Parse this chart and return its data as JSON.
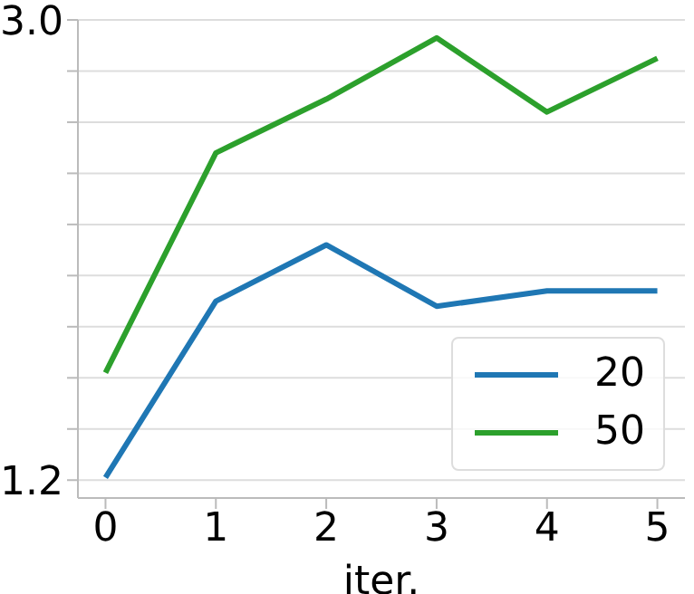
{
  "chart_data": {
    "type": "line",
    "xlabel": "iter.",
    "x": [
      0,
      1,
      2,
      3,
      4,
      5
    ],
    "xlim": [
      -0.25,
      5.25
    ],
    "xticks": [
      0,
      1,
      2,
      3,
      4,
      5
    ],
    "ylim": [
      1.13,
      3.0
    ],
    "yticks": [
      1.2,
      {
        "value": 1.4,
        "label": null
      },
      {
        "value": 1.6,
        "label": null
      },
      {
        "value": 1.8,
        "label": null
      },
      {
        "value": 2.0,
        "label": null
      },
      {
        "value": 2.2,
        "label": null
      },
      {
        "value": 2.4,
        "label": null
      },
      {
        "value": 2.6,
        "label": null
      },
      {
        "value": 2.8,
        "label": null
      },
      {
        "value": 3.0,
        "label": "3.0"
      }
    ],
    "series": [
      {
        "name": "20",
        "color": "#1f77b4",
        "values": [
          1.21,
          1.9,
          2.12,
          1.88,
          1.94,
          1.94
        ]
      },
      {
        "name": "50",
        "color": "#2ca02c",
        "values": [
          1.62,
          2.48,
          2.69,
          2.93,
          2.64,
          2.85
        ]
      }
    ],
    "grid": "y",
    "legend": "bottom right",
    "marker": "none",
    "line_style": "solid"
  }
}
